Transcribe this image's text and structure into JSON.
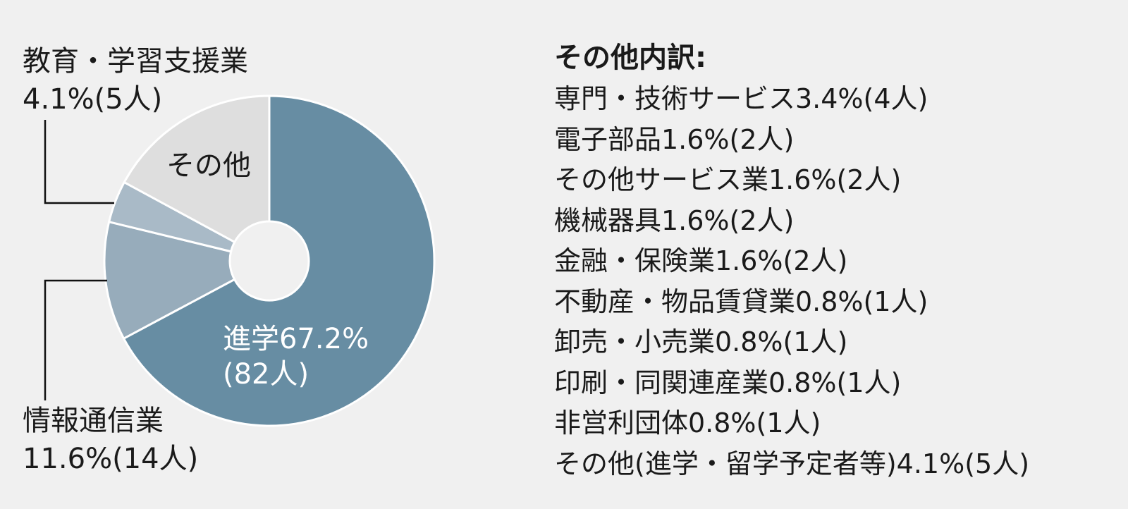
{
  "chart_data": {
    "type": "pie",
    "variant": "donut",
    "start": "top",
    "direction": "clockwise",
    "slices": [
      {
        "key": "shingaku",
        "label": "進学",
        "value": 67.2,
        "display_value": "67.2%",
        "count": "(82人)",
        "color": "#678da3"
      },
      {
        "key": "jouhou",
        "label": "情報通信業",
        "value": 11.6,
        "display_value": "11.6%",
        "count": "(14人)",
        "color": "#97acbb"
      },
      {
        "key": "kyouiku",
        "label": "教育・学習支援業",
        "value": 4.1,
        "display_value": "4.1%",
        "count": "(5人)",
        "color": "#a9bac7"
      },
      {
        "key": "sonota",
        "label": "その他",
        "value": 17.1,
        "display_value": "",
        "count": "",
        "color": "#dedede"
      }
    ],
    "breakdown": {
      "title": "その他内訳:",
      "items": [
        "専門・技術サービス3.4%(4人)",
        "電子部品1.6%(2人)",
        "その他サービス業1.6%(2人)",
        "機械器具1.6%(2人)",
        "金融・保険業1.6%(2人)",
        "不動産・物品賃貸業0.8%(1人)",
        "卸売・小売業0.8%(1人)",
        "印刷・同関連産業0.8%(1人)",
        "非営利団体0.8%(1人)",
        "その他(進学・留学予定者等)4.1%(5人)"
      ]
    }
  }
}
